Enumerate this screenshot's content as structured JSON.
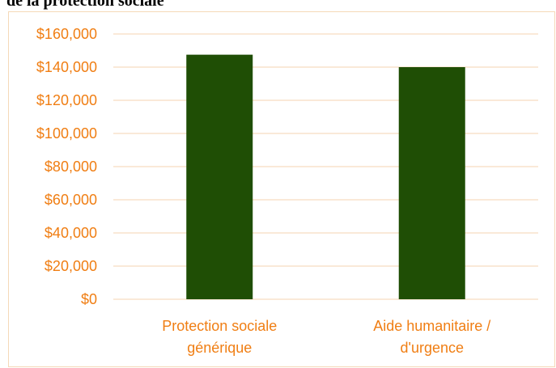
{
  "title_text": "de la protection sociale",
  "colors": {
    "bar": "#1f4e05",
    "axis_text": "#f07e13",
    "gridline": "#f8dcc0",
    "border": "#f5d9b8"
  },
  "chart_data": {
    "type": "bar",
    "categories": [
      [
        "Protection sociale",
        "générique"
      ],
      [
        "Aide humanitaire /",
        "d'urgence"
      ]
    ],
    "values": [
      147500,
      140000
    ],
    "ylim": [
      0,
      160000
    ],
    "yticks": [
      0,
      20000,
      40000,
      60000,
      80000,
      100000,
      120000,
      140000,
      160000
    ],
    "ytick_labels": [
      "$0",
      "$20,000",
      "$40,000",
      "$60,000",
      "$80,000",
      "$100,000",
      "$120,000",
      "$140,000",
      "$160,000"
    ],
    "grid": true,
    "legend": "none"
  }
}
